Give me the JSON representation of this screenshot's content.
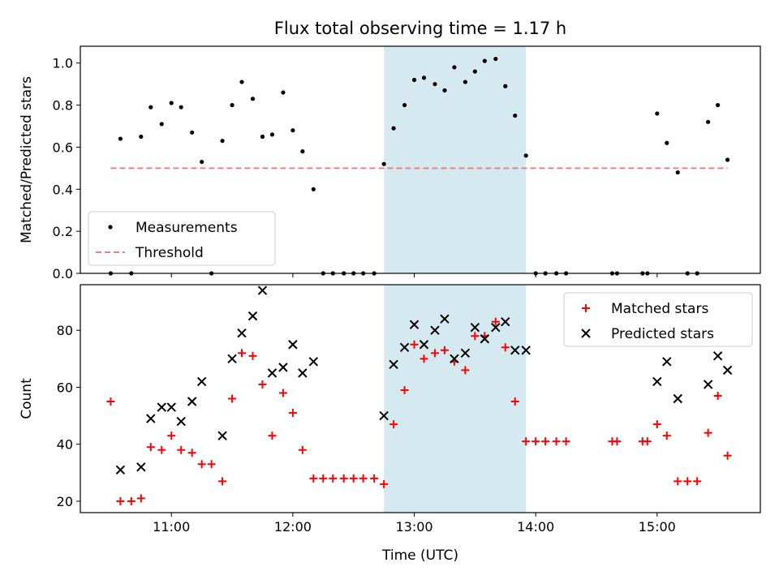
{
  "chart_data": {
    "title": "Flux total observing time = 1.17 h",
    "xlabel": "Time (UTC)",
    "x_unit": "hours UTC (decimal)",
    "xlim": [
      10.25,
      15.85
    ],
    "xticks": [
      {
        "value": 11,
        "label": "11:00"
      },
      {
        "value": 12,
        "label": "12:00"
      },
      {
        "value": 13,
        "label": "13:00"
      },
      {
        "value": 14,
        "label": "14:00"
      },
      {
        "value": 15,
        "label": "15:00"
      }
    ],
    "shaded_region": {
      "x_start": 12.75,
      "x_end": 13.92,
      "color": "#d4eaf0"
    },
    "panels": [
      {
        "type": "scatter",
        "ylabel": "Matched/Predicted stars",
        "ylim": [
          0,
          1.08
        ],
        "yticks": [
          {
            "value": 0,
            "label": "0.0"
          },
          {
            "value": 0.2,
            "label": "0.2"
          },
          {
            "value": 0.4,
            "label": "0.4"
          },
          {
            "value": 0.6,
            "label": "0.6"
          },
          {
            "value": 0.8,
            "label": "0.8"
          },
          {
            "value": 1.0,
            "label": "1.0"
          }
        ],
        "legend_position": "bottom-left",
        "series": [
          {
            "name": "Measurements",
            "marker": "dot",
            "color": "#000000",
            "points": [
              [
                10.5,
                0.0
              ],
              [
                10.58,
                0.64
              ],
              [
                10.67,
                0.0
              ],
              [
                10.75,
                0.65
              ],
              [
                10.83,
                0.79
              ],
              [
                10.92,
                0.71
              ],
              [
                11.0,
                0.81
              ],
              [
                11.08,
                0.79
              ],
              [
                11.17,
                0.67
              ],
              [
                11.25,
                0.53
              ],
              [
                11.33,
                0.0
              ],
              [
                11.42,
                0.63
              ],
              [
                11.5,
                0.8
              ],
              [
                11.58,
                0.91
              ],
              [
                11.67,
                0.83
              ],
              [
                11.75,
                0.65
              ],
              [
                11.83,
                0.66
              ],
              [
                11.92,
                0.86
              ],
              [
                12.0,
                0.68
              ],
              [
                12.08,
                0.58
              ],
              [
                12.17,
                0.4
              ],
              [
                12.25,
                0.0
              ],
              [
                12.33,
                0.0
              ],
              [
                12.42,
                0.0
              ],
              [
                12.5,
                0.0
              ],
              [
                12.58,
                0.0
              ],
              [
                12.67,
                0.0
              ],
              [
                12.75,
                0.52
              ],
              [
                12.83,
                0.69
              ],
              [
                12.92,
                0.8
              ],
              [
                13.0,
                0.92
              ],
              [
                13.08,
                0.93
              ],
              [
                13.17,
                0.9
              ],
              [
                13.25,
                0.87
              ],
              [
                13.33,
                0.98
              ],
              [
                13.42,
                0.91
              ],
              [
                13.5,
                0.96
              ],
              [
                13.58,
                1.01
              ],
              [
                13.67,
                1.02
              ],
              [
                13.75,
                0.89
              ],
              [
                13.83,
                0.75
              ],
              [
                13.92,
                0.56
              ],
              [
                14.0,
                0.0
              ],
              [
                14.08,
                0.0
              ],
              [
                14.17,
                0.0
              ],
              [
                14.25,
                0.0
              ],
              [
                14.63,
                0.0
              ],
              [
                14.67,
                0.0
              ],
              [
                14.88,
                0.0
              ],
              [
                14.92,
                0.0
              ],
              [
                15.0,
                0.76
              ],
              [
                15.08,
                0.62
              ],
              [
                15.17,
                0.48
              ],
              [
                15.25,
                0.0
              ],
              [
                15.33,
                0.0
              ],
              [
                15.42,
                0.72
              ],
              [
                15.5,
                0.8
              ],
              [
                15.58,
                0.54
              ]
            ]
          },
          {
            "name": "Threshold",
            "marker": "dashed-line",
            "color": "#f08080",
            "points": [
              [
                10.5,
                0.5
              ],
              [
                15.58,
                0.5
              ]
            ]
          }
        ]
      },
      {
        "type": "scatter",
        "ylabel": "Count",
        "ylim": [
          16,
          96
        ],
        "yticks": [
          {
            "value": 20,
            "label": "20"
          },
          {
            "value": 40,
            "label": "40"
          },
          {
            "value": 60,
            "label": "60"
          },
          {
            "value": 80,
            "label": "80"
          }
        ],
        "legend_position": "top-right",
        "series": [
          {
            "name": "Matched stars",
            "marker": "plus",
            "color": "#ff0000",
            "points": [
              [
                10.5,
                55
              ],
              [
                10.58,
                20
              ],
              [
                10.67,
                20
              ],
              [
                10.75,
                21
              ],
              [
                10.83,
                39
              ],
              [
                10.92,
                38
              ],
              [
                11.0,
                43
              ],
              [
                11.08,
                38
              ],
              [
                11.17,
                37
              ],
              [
                11.25,
                33
              ],
              [
                11.33,
                33
              ],
              [
                11.42,
                27
              ],
              [
                11.5,
                56
              ],
              [
                11.58,
                72
              ],
              [
                11.67,
                71
              ],
              [
                11.75,
                61
              ],
              [
                11.83,
                43
              ],
              [
                11.92,
                58
              ],
              [
                12.0,
                51
              ],
              [
                12.08,
                38
              ],
              [
                12.17,
                28
              ],
              [
                12.25,
                28
              ],
              [
                12.33,
                28
              ],
              [
                12.42,
                28
              ],
              [
                12.5,
                28
              ],
              [
                12.58,
                28
              ],
              [
                12.67,
                28
              ],
              [
                12.75,
                26
              ],
              [
                12.83,
                47
              ],
              [
                12.92,
                59
              ],
              [
                13.0,
                75
              ],
              [
                13.08,
                70
              ],
              [
                13.17,
                72
              ],
              [
                13.25,
                73
              ],
              [
                13.33,
                69
              ],
              [
                13.42,
                66
              ],
              [
                13.5,
                78
              ],
              [
                13.58,
                78
              ],
              [
                13.67,
                83
              ],
              [
                13.75,
                74
              ],
              [
                13.83,
                55
              ],
              [
                13.92,
                41
              ],
              [
                14.0,
                41
              ],
              [
                14.08,
                41
              ],
              [
                14.17,
                41
              ],
              [
                14.25,
                41
              ],
              [
                14.63,
                41
              ],
              [
                14.67,
                41
              ],
              [
                14.88,
                41
              ],
              [
                14.92,
                41
              ],
              [
                15.0,
                47
              ],
              [
                15.08,
                43
              ],
              [
                15.17,
                27
              ],
              [
                15.25,
                27
              ],
              [
                15.33,
                27
              ],
              [
                15.42,
                44
              ],
              [
                15.5,
                57
              ],
              [
                15.58,
                36
              ]
            ]
          },
          {
            "name": "Predicted stars",
            "marker": "x",
            "color": "#000000",
            "points": [
              [
                10.58,
                31
              ],
              [
                10.75,
                32
              ],
              [
                10.83,
                49
              ],
              [
                10.92,
                53
              ],
              [
                11.0,
                53
              ],
              [
                11.08,
                48
              ],
              [
                11.17,
                55
              ],
              [
                11.25,
                62
              ],
              [
                11.42,
                43
              ],
              [
                11.5,
                70
              ],
              [
                11.58,
                79
              ],
              [
                11.67,
                85
              ],
              [
                11.75,
                94
              ],
              [
                11.83,
                65
              ],
              [
                11.92,
                67
              ],
              [
                12.0,
                75
              ],
              [
                12.08,
                65
              ],
              [
                12.17,
                69
              ],
              [
                12.75,
                50
              ],
              [
                12.83,
                68
              ],
              [
                12.92,
                74
              ],
              [
                13.0,
                82
              ],
              [
                13.08,
                75
              ],
              [
                13.17,
                80
              ],
              [
                13.25,
                84
              ],
              [
                13.33,
                70
              ],
              [
                13.42,
                72
              ],
              [
                13.5,
                81
              ],
              [
                13.58,
                77
              ],
              [
                13.67,
                81
              ],
              [
                13.75,
                83
              ],
              [
                13.83,
                73
              ],
              [
                13.92,
                73
              ],
              [
                15.0,
                62
              ],
              [
                15.08,
                69
              ],
              [
                15.17,
                56
              ],
              [
                15.42,
                61
              ],
              [
                15.5,
                71
              ],
              [
                15.58,
                66
              ]
            ]
          }
        ]
      }
    ]
  }
}
